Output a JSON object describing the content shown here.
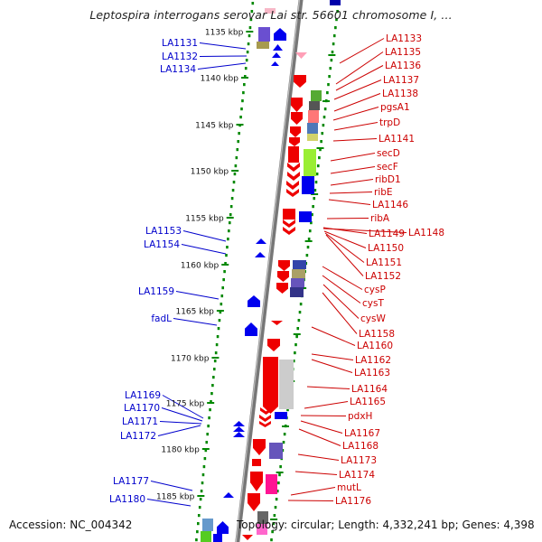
{
  "title": "Leptospira interrogans serovar Lai str. 56601 chromosome I, ...",
  "footer": {
    "accession_label": "Accession:",
    "accession": "NC_004342",
    "topology_label": "Topology:",
    "topology": "circular",
    "length_label": "Length:",
    "length": "4,332,241 bp",
    "genes_label": "Genes:",
    "genes": "4,398"
  },
  "colors": {
    "backbone": "#777777",
    "forward_strand": "#ee0000",
    "reverse_strand": "#0000ee",
    "tick": "#008800",
    "left_label": "#0000cc",
    "right_label": "#cc0000"
  },
  "ticks": [
    "1135 kbp",
    "1140 kbp",
    "1145 kbp",
    "1150 kbp",
    "1155 kbp",
    "1160 kbp",
    "1165 kbp",
    "1170 kbp",
    "1175 kbp",
    "1180 kbp",
    "1185 kbp"
  ],
  "left_genes": [
    "LA1131",
    "LA1132",
    "LA1134",
    "LA1153",
    "LA1154",
    "LA1159",
    "fadL",
    "LA1169",
    "LA1170",
    "LA1171",
    "LA1172",
    "LA1177",
    "LA1180"
  ],
  "right_genes": [
    "LA1133",
    "LA1135",
    "LA1136",
    "LA1137",
    "LA1138",
    "pgsA1",
    "trpD",
    "LA1141",
    "secD",
    "secF",
    "ribD1",
    "ribE",
    "LA1146",
    "ribA",
    "LA1149",
    "LA1148",
    "LA1150",
    "LA1151",
    "LA1152",
    "cysP",
    "cysT",
    "cysW",
    "LA1158",
    "LA1160",
    "LA1162",
    "LA1163",
    "LA1164",
    "LA1165",
    "pdxH",
    "LA1167",
    "LA1168",
    "LA1173",
    "LA1174",
    "mutL",
    "LA1176"
  ]
}
